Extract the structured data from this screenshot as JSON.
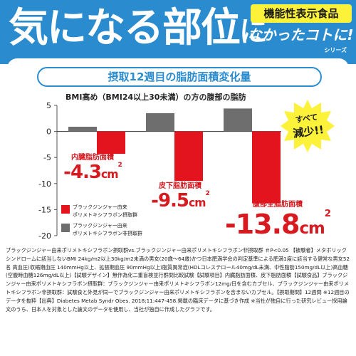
{
  "header": {
    "headline_main": "気になる部位",
    "headline_tail": "に",
    "badge": "機能性表示食品",
    "brand": "なかったコトに!",
    "brand_series": "シリーズ"
  },
  "stamp": {
    "line1": "すべて",
    "line2": "減少!!"
  },
  "chart_data": {
    "type": "bar",
    "title": "摂取12週目の脂肪面積変化量",
    "subtitle": "BMI高め（BMI24以上30未満）の方の腹部の脂肪",
    "categories": [
      "内臓脂肪面積",
      "皮下脂肪面積",
      "腹部全脂肪面積"
    ],
    "ylim": [
      -20,
      5
    ],
    "yticks": [
      5,
      0,
      -5,
      -10,
      -15,
      -20
    ],
    "series": [
      {
        "name": "ブラックジンジャー由来ポリメトキシフラボン摂取群",
        "color": "#e4141f",
        "values": [
          -4.3,
          -9.5,
          -13.8
        ]
      },
      {
        "name": "ブラックジンジャー由来ポリメトキシフラボン非摂取群",
        "color": "#6e6e6e",
        "values": [
          0.9,
          3.5,
          4.4
        ]
      }
    ],
    "value_labels": [
      {
        "label": "内臓脂肪面積",
        "value": "-4.3",
        "unit": "cm",
        "sup": "2"
      },
      {
        "label": "皮下脂肪面積",
        "value": "-9.5",
        "unit": "cm",
        "sup": "2"
      },
      {
        "label": "腹部全脂肪面積",
        "value": "-13.8",
        "unit": "cm",
        "sup": "2"
      }
    ],
    "legend": [
      {
        "line1": "ブラックジンジャー由来",
        "line2": "ポリメトキシフラボン摂取群",
        "color": "#e4141f"
      },
      {
        "line1": "ブラックジンジャー由来",
        "line2": "ポリメトキシフラボン非摂取群",
        "color": "#6e6e6e"
      }
    ]
  },
  "footnote": "ブラックジンジャー由来ポリメトキシフラボン摂取群vs.ブラックジンジャー由来ポリメトキシフラボン非摂取群 ＃P<0.05 【被験者】メタボリックシンドロームに該当しないBMI 24kg/m2以上30kg/m2未満の男女(20歳～64歳)かつ日本肥満学会の判定基準による肥満1度に該当する健常な男女52名 高血圧(収縮期血圧 140mmHg以上、拡張期血圧 90mmHg以上)脂質異常症(HDLコレステロール40mg/dL未満、中性脂肪150mg/dL以上)高血糖(空腹時血糖126mg/dL以上)【試験デザイン】無作為化二重盲検並行群間比較試験【試験項目】内臓脂肪面積、皮下脂肪面積【試験食品】ブラックジンジャー由来ポリメトキシフラボン摂取群：ブラックジンジャー由来ポリメトキシフラボン12mg/日を含むカプセル、ブラックジンジャー由来ポリメトキシフラボン非摂取群：試験食と外見が同一でブラックジンジャー由来ポリメトキシフラボンを含まないカプセル。【摂取期間】12週間 ※12週目のデータを抜粋【出典】Diabetes Metab Syndr Obes. 2018;11:447-458.掲載の臨床データに基づき作成 ※当社が独自に行った研究レビュー採用論文のうち、日本人を対象とした論文のデータを使用し、当社が独自に作成したグラフです。"
}
